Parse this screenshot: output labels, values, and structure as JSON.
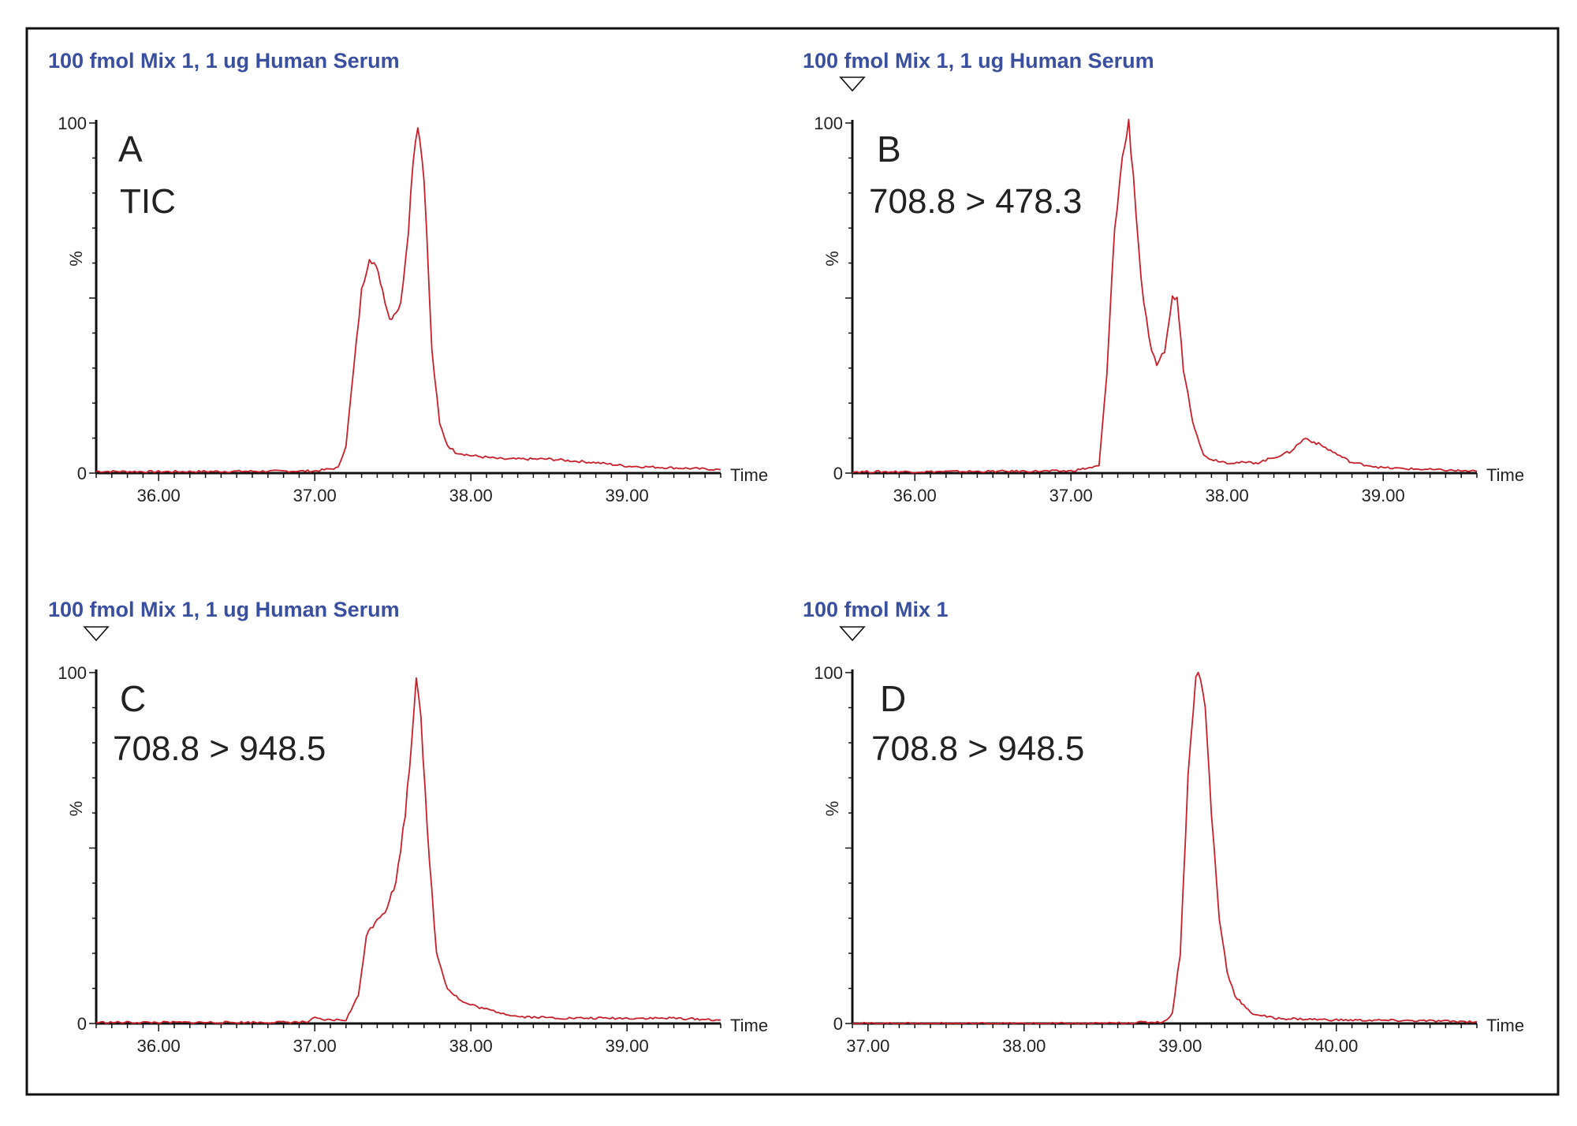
{
  "style": {
    "trace_color": "#c8202a",
    "title_color": "#3a4fa0",
    "frame_color": "#111111"
  },
  "chart_data": [
    {
      "type": "line",
      "panel": "A",
      "title": "100 fmol Mix 1, 1 ug Human Serum",
      "label": "TIC",
      "xlabel": "Time",
      "ylabel": "%",
      "xlim": [
        35.6,
        39.6
      ],
      "ylim": [
        0,
        100
      ],
      "xticks": [
        "36.00",
        "37.00",
        "38.00",
        "39.00"
      ],
      "xtick_values": [
        36,
        37,
        38,
        39
      ],
      "yticks": [
        "0",
        "100"
      ],
      "ytick_values": [
        0,
        100
      ],
      "peak_marker": false,
      "series": [
        {
          "x": [
            35.6,
            36.0,
            36.5,
            37.0,
            37.15,
            37.2,
            37.25,
            37.3,
            37.35,
            37.38,
            37.42,
            37.48,
            37.55,
            37.6,
            37.63,
            37.66,
            37.7,
            37.75,
            37.8,
            37.85,
            37.9,
            38.0,
            38.2,
            38.5,
            38.8,
            39.0,
            39.3,
            39.6
          ],
          "y": [
            0.5,
            0.4,
            0.5,
            0.6,
            1.5,
            8,
            30,
            52,
            62,
            60,
            55,
            44,
            48,
            70,
            90,
            100,
            85,
            35,
            14,
            8,
            6,
            5,
            4,
            4,
            3,
            2,
            1.5,
            1
          ]
        }
      ]
    },
    {
      "type": "line",
      "panel": "B",
      "title": "100 fmol Mix 1, 1 ug Human Serum",
      "label": "708.8 > 478.3",
      "xlabel": "Time",
      "ylabel": "%",
      "xlim": [
        35.6,
        39.6
      ],
      "ylim": [
        0,
        100
      ],
      "xticks": [
        "36.00",
        "37.00",
        "38.00",
        "39.00"
      ],
      "xtick_values": [
        36,
        37,
        38,
        39
      ],
      "yticks": [
        "0",
        "100"
      ],
      "ytick_values": [
        0,
        100
      ],
      "peak_marker": true,
      "series": [
        {
          "x": [
            35.6,
            36.0,
            36.5,
            37.0,
            37.18,
            37.23,
            37.28,
            37.33,
            37.37,
            37.4,
            37.45,
            37.5,
            37.55,
            37.6,
            37.65,
            37.68,
            37.72,
            37.78,
            37.85,
            37.9,
            38.0,
            38.2,
            38.4,
            38.5,
            38.6,
            38.8,
            39.0,
            39.3,
            39.6
          ],
          "y": [
            0.4,
            0.4,
            0.5,
            0.6,
            2,
            28,
            70,
            90,
            100,
            85,
            55,
            38,
            30,
            35,
            50,
            50,
            30,
            15,
            5,
            4,
            3,
            3,
            6,
            10,
            8,
            3,
            1.5,
            1,
            0.5
          ]
        }
      ]
    },
    {
      "type": "line",
      "panel": "C",
      "title": "100 fmol Mix 1, 1 ug Human Serum",
      "label": "708.8 > 948.5",
      "xlabel": "Time",
      "ylabel": "%",
      "xlim": [
        35.6,
        39.6
      ],
      "ylim": [
        0,
        100
      ],
      "xticks": [
        "36.00",
        "37.00",
        "38.00",
        "39.00"
      ],
      "xtick_values": [
        36,
        37,
        38,
        39
      ],
      "yticks": [
        "0",
        "100"
      ],
      "ytick_values": [
        0,
        100
      ],
      "peak_marker": true,
      "series": [
        {
          "x": [
            35.6,
            36.0,
            36.5,
            36.95,
            37.0,
            37.05,
            37.2,
            37.28,
            37.33,
            37.4,
            37.45,
            37.52,
            37.58,
            37.62,
            37.65,
            37.68,
            37.72,
            37.78,
            37.85,
            37.95,
            38.1,
            38.3,
            38.6,
            39.0,
            39.3,
            39.6
          ],
          "y": [
            0.3,
            0.3,
            0.3,
            0.4,
            1.5,
            1,
            1,
            8,
            25,
            30,
            32,
            40,
            60,
            80,
            100,
            88,
            55,
            20,
            10,
            6,
            4,
            2,
            1.5,
            1.5,
            1.5,
            1
          ]
        }
      ]
    },
    {
      "type": "line",
      "panel": "D",
      "title": "100 fmol Mix 1",
      "label": "708.8 > 948.5",
      "xlabel": "Time",
      "ylabel": "%",
      "xlim": [
        36.9,
        40.9
      ],
      "ylim": [
        0,
        100
      ],
      "xticks": [
        "37.00",
        "38.00",
        "39.00",
        "40.00"
      ],
      "xtick_values": [
        37,
        38,
        39,
        40
      ],
      "yticks": [
        "0",
        "100"
      ],
      "ytick_values": [
        0,
        100
      ],
      "peak_marker": true,
      "series": [
        {
          "x": [
            36.9,
            37.5,
            38.0,
            38.5,
            38.9,
            38.95,
            39.0,
            39.05,
            39.1,
            39.13,
            39.16,
            39.2,
            39.25,
            39.3,
            39.35,
            39.45,
            39.6,
            40.0,
            40.5,
            40.9
          ],
          "y": [
            0,
            0,
            0,
            0,
            0.5,
            3,
            20,
            70,
            100,
            98,
            90,
            60,
            30,
            15,
            8,
            3,
            1.5,
            1,
            0.8,
            0.5
          ]
        }
      ]
    }
  ]
}
